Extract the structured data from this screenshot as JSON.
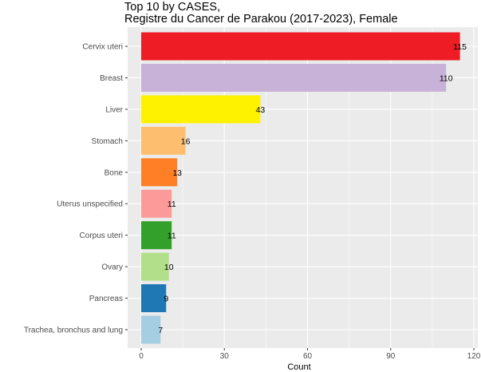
{
  "chart_data": {
    "type": "bar",
    "orientation": "horizontal",
    "title": "Top 10 by CASES,",
    "subtitle": "Registre du Cancer de Parakou (2017-2023), Female",
    "xlabel": "Count",
    "ylabel": "",
    "xlim": [
      0,
      120
    ],
    "x_ticks": [
      0,
      30,
      60,
      90,
      120
    ],
    "grid": true,
    "legend": "none",
    "panel_background": "#ebebeb",
    "grid_color": "#ffffff",
    "categories": [
      "Cervix uteri",
      "Breast",
      "Liver",
      "Stomach",
      "Bone",
      "Uterus unspecified",
      "Corpus uteri",
      "Ovary",
      "Pancreas",
      "Trachea, bronchus and lung"
    ],
    "values": [
      115,
      110,
      43,
      16,
      13,
      11,
      11,
      10,
      9,
      7
    ],
    "colors": [
      "#ee1c25",
      "#c8b2d8",
      "#fff200",
      "#fdbf6f",
      "#ff7f27",
      "#fb9a99",
      "#33a02c",
      "#b2df8a",
      "#1f78b4",
      "#a6cee3"
    ]
  }
}
